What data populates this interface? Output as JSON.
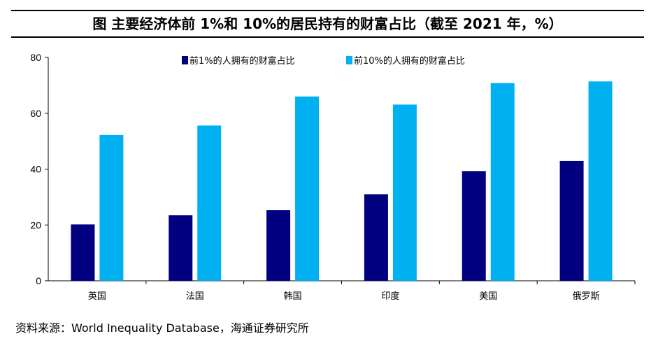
{
  "title": "图  主要经济体前 1%和 10%的居民持有的财富占比（截至 2021 年，%）",
  "source": "资料来源：World Inequality Database，海通证券研究所",
  "chart_data": {
    "type": "bar",
    "categories": [
      "英国",
      "法国",
      "韩国",
      "印度",
      "美国",
      "俄罗斯"
    ],
    "series": [
      {
        "name": "前1%的人拥有的财富占比",
        "color": "#000080",
        "values": [
          20.2,
          23.5,
          25.3,
          31.0,
          39.3,
          42.9
        ]
      },
      {
        "name": "前10%的人拥有的财富占比",
        "color": "#00B0F0",
        "values": [
          52.2,
          55.6,
          66.0,
          63.1,
          70.8,
          71.4
        ]
      }
    ],
    "ylim": [
      0,
      80
    ],
    "yticks": [
      "0",
      "20",
      "40",
      "60",
      "80"
    ],
    "grid": false,
    "legend": "top-center"
  }
}
